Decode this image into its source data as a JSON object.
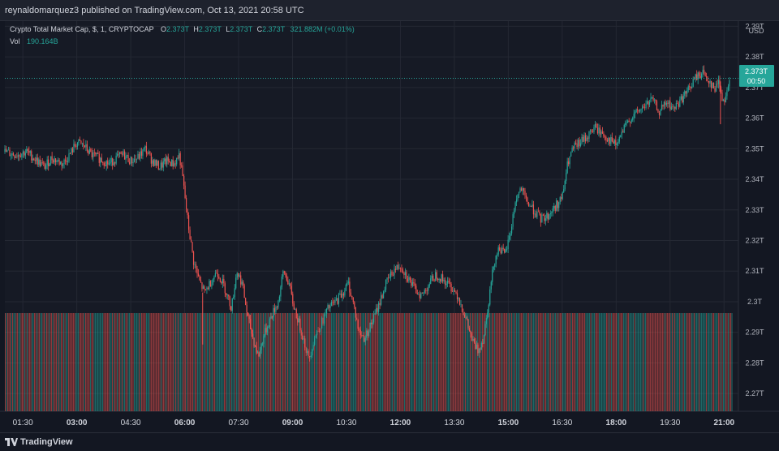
{
  "header": {
    "author": "reynaldomarquez3",
    "published_text": "published on",
    "site": "TradingView.com,",
    "datetime": "Oct 13, 2021 20:58 UTC"
  },
  "legend": {
    "symbol": "Crypto Total Market Cap, $, 1, CRYPTOCAP",
    "o_label": "O",
    "o_value": "2.373T",
    "h_label": "H",
    "h_value": "2.373T",
    "l_label": "L",
    "l_value": "2.373T",
    "c_label": "C",
    "c_value": "2.373T",
    "change": "321.882M (+0.01%)",
    "vol_label": "Vol",
    "vol_value": "190.164B"
  },
  "price_scale": {
    "currency": "USD",
    "last_price": "2.373T",
    "countdown": "00:50"
  },
  "footer": {
    "brand": "TradingView"
  },
  "colors": {
    "up": "#26a69a",
    "down": "#ef5350",
    "background": "#161a25",
    "grid": "#242833"
  },
  "chart_data": {
    "type": "candlestick",
    "title": "Crypto Total Market Cap, $, 1, CRYPTOCAP",
    "ylabel": "USD",
    "y_ticks": [
      "2.27T",
      "2.28T",
      "2.29T",
      "2.3T",
      "2.31T",
      "2.32T",
      "2.33T",
      "2.34T",
      "2.35T",
      "2.36T",
      "2.37T",
      "2.38T",
      "2.39T"
    ],
    "y_tick_values": [
      2.27,
      2.28,
      2.29,
      2.3,
      2.31,
      2.32,
      2.33,
      2.34,
      2.35,
      2.36,
      2.37,
      2.38,
      2.39
    ],
    "x_ticks": [
      "01:30",
      "03:00",
      "04:30",
      "06:00",
      "07:30",
      "09:00",
      "10:30",
      "12:00",
      "13:30",
      "15:00",
      "16:30",
      "18:00",
      "19:30",
      "21:00"
    ],
    "x_tick_bold": [
      false,
      true,
      false,
      true,
      false,
      true,
      false,
      true,
      false,
      true,
      false,
      true,
      false,
      true
    ],
    "x_tick_hours": [
      1.5,
      3,
      4.5,
      6,
      7.5,
      9,
      10.5,
      12,
      13.5,
      15,
      16.5,
      18,
      19.5,
      21
    ],
    "xlim_hours": [
      1.0,
      21.4
    ],
    "ylim": [
      2.2642,
      2.3917
    ],
    "last_price_value": 2.373,
    "close_path": [
      [
        1.0,
        2.349
      ],
      [
        1.3,
        2.348
      ],
      [
        1.6,
        2.349
      ],
      [
        1.9,
        2.346
      ],
      [
        2.1,
        2.344
      ],
      [
        2.3,
        2.347
      ],
      [
        2.6,
        2.345
      ],
      [
        2.8,
        2.348
      ],
      [
        3.0,
        2.352
      ],
      [
        3.2,
        2.351
      ],
      [
        3.4,
        2.348
      ],
      [
        3.6,
        2.347
      ],
      [
        3.9,
        2.345
      ],
      [
        4.1,
        2.347
      ],
      [
        4.3,
        2.348
      ],
      [
        4.5,
        2.346
      ],
      [
        4.7,
        2.347
      ],
      [
        4.9,
        2.35
      ],
      [
        5.1,
        2.346
      ],
      [
        5.3,
        2.344
      ],
      [
        5.5,
        2.346
      ],
      [
        5.7,
        2.345
      ],
      [
        5.85,
        2.348
      ],
      [
        5.95,
        2.34
      ],
      [
        6.1,
        2.325
      ],
      [
        6.25,
        2.313
      ],
      [
        6.4,
        2.307
      ],
      [
        6.55,
        2.303
      ],
      [
        6.7,
        2.306
      ],
      [
        6.9,
        2.31
      ],
      [
        7.1,
        2.305
      ],
      [
        7.3,
        2.298
      ],
      [
        7.45,
        2.31
      ],
      [
        7.6,
        2.306
      ],
      [
        7.75,
        2.295
      ],
      [
        7.9,
        2.288
      ],
      [
        8.05,
        2.282
      ],
      [
        8.2,
        2.289
      ],
      [
        8.4,
        2.295
      ],
      [
        8.6,
        2.3
      ],
      [
        8.75,
        2.31
      ],
      [
        8.9,
        2.306
      ],
      [
        9.0,
        2.3
      ],
      [
        9.15,
        2.294
      ],
      [
        9.3,
        2.288
      ],
      [
        9.45,
        2.281
      ],
      [
        9.6,
        2.288
      ],
      [
        9.8,
        2.293
      ],
      [
        10.0,
        2.298
      ],
      [
        10.2,
        2.3
      ],
      [
        10.4,
        2.303
      ],
      [
        10.55,
        2.306
      ],
      [
        10.7,
        2.299
      ],
      [
        10.85,
        2.29
      ],
      [
        11.0,
        2.288
      ],
      [
        11.2,
        2.293
      ],
      [
        11.4,
        2.299
      ],
      [
        11.6,
        2.306
      ],
      [
        11.8,
        2.31
      ],
      [
        12.0,
        2.312
      ],
      [
        12.2,
        2.308
      ],
      [
        12.4,
        2.304
      ],
      [
        12.6,
        2.302
      ],
      [
        12.8,
        2.306
      ],
      [
        13.0,
        2.309
      ],
      [
        13.2,
        2.307
      ],
      [
        13.4,
        2.305
      ],
      [
        13.6,
        2.302
      ],
      [
        13.8,
        2.295
      ],
      [
        14.0,
        2.287
      ],
      [
        14.15,
        2.284
      ],
      [
        14.3,
        2.288
      ],
      [
        14.45,
        2.3
      ],
      [
        14.6,
        2.313
      ],
      [
        14.75,
        2.318
      ],
      [
        14.9,
        2.315
      ],
      [
        15.05,
        2.322
      ],
      [
        15.2,
        2.333
      ],
      [
        15.35,
        2.337
      ],
      [
        15.5,
        2.333
      ],
      [
        15.7,
        2.33
      ],
      [
        15.9,
        2.327
      ],
      [
        16.1,
        2.328
      ],
      [
        16.3,
        2.331
      ],
      [
        16.5,
        2.334
      ],
      [
        16.65,
        2.345
      ],
      [
        16.8,
        2.35
      ],
      [
        17.0,
        2.352
      ],
      [
        17.2,
        2.354
      ],
      [
        17.4,
        2.357
      ],
      [
        17.6,
        2.355
      ],
      [
        17.8,
        2.353
      ],
      [
        18.0,
        2.351
      ],
      [
        18.2,
        2.356
      ],
      [
        18.4,
        2.36
      ],
      [
        18.6,
        2.362
      ],
      [
        18.8,
        2.364
      ],
      [
        19.0,
        2.366
      ],
      [
        19.2,
        2.362
      ],
      [
        19.4,
        2.365
      ],
      [
        19.6,
        2.363
      ],
      [
        19.8,
        2.366
      ],
      [
        20.0,
        2.369
      ],
      [
        20.2,
        2.373
      ],
      [
        20.4,
        2.375
      ],
      [
        20.6,
        2.372
      ],
      [
        20.75,
        2.369
      ],
      [
        20.85,
        2.373
      ],
      [
        20.95,
        2.366
      ],
      [
        21.05,
        2.367
      ],
      [
        21.15,
        2.373
      ]
    ],
    "volume_note": "volume bars shown as uniform alternating green/red histogram"
  }
}
